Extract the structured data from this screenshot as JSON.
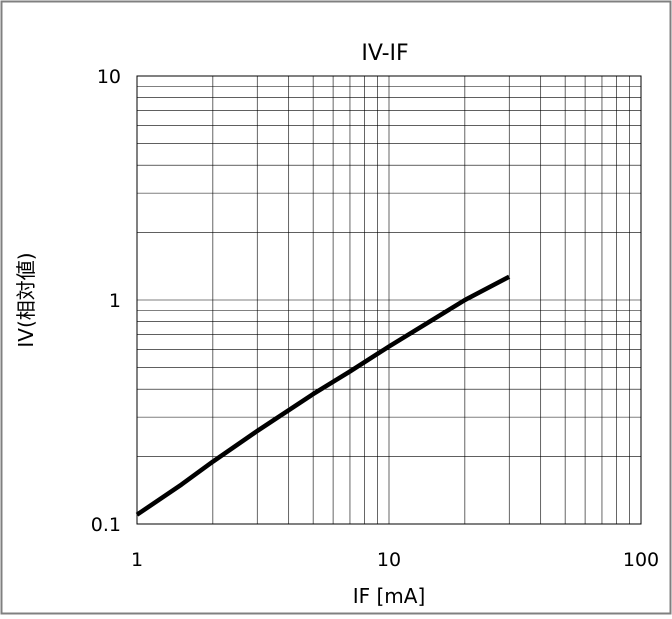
{
  "chart_data": {
    "type": "line",
    "title": "IV-IF",
    "xlabel": "IF [mA]",
    "ylabel": "IV(相対値)",
    "x_scale": "log",
    "y_scale": "log",
    "xlim": [
      1,
      100
    ],
    "ylim": [
      0.1,
      10
    ],
    "x_ticks": [
      "1",
      "10",
      "100"
    ],
    "y_ticks": [
      "0.1",
      "1",
      "10"
    ],
    "grid": true,
    "legend": "none",
    "colors": {
      "line": "#000000",
      "grid": "#000000",
      "frame": "#808080"
    },
    "series": [
      {
        "x": [
          1,
          1.5,
          2,
          3,
          5,
          7,
          10,
          15,
          20,
          30
        ],
        "values": [
          0.11,
          0.15,
          0.19,
          0.26,
          0.38,
          0.48,
          0.62,
          0.82,
          1.0,
          1.27
        ]
      }
    ]
  }
}
